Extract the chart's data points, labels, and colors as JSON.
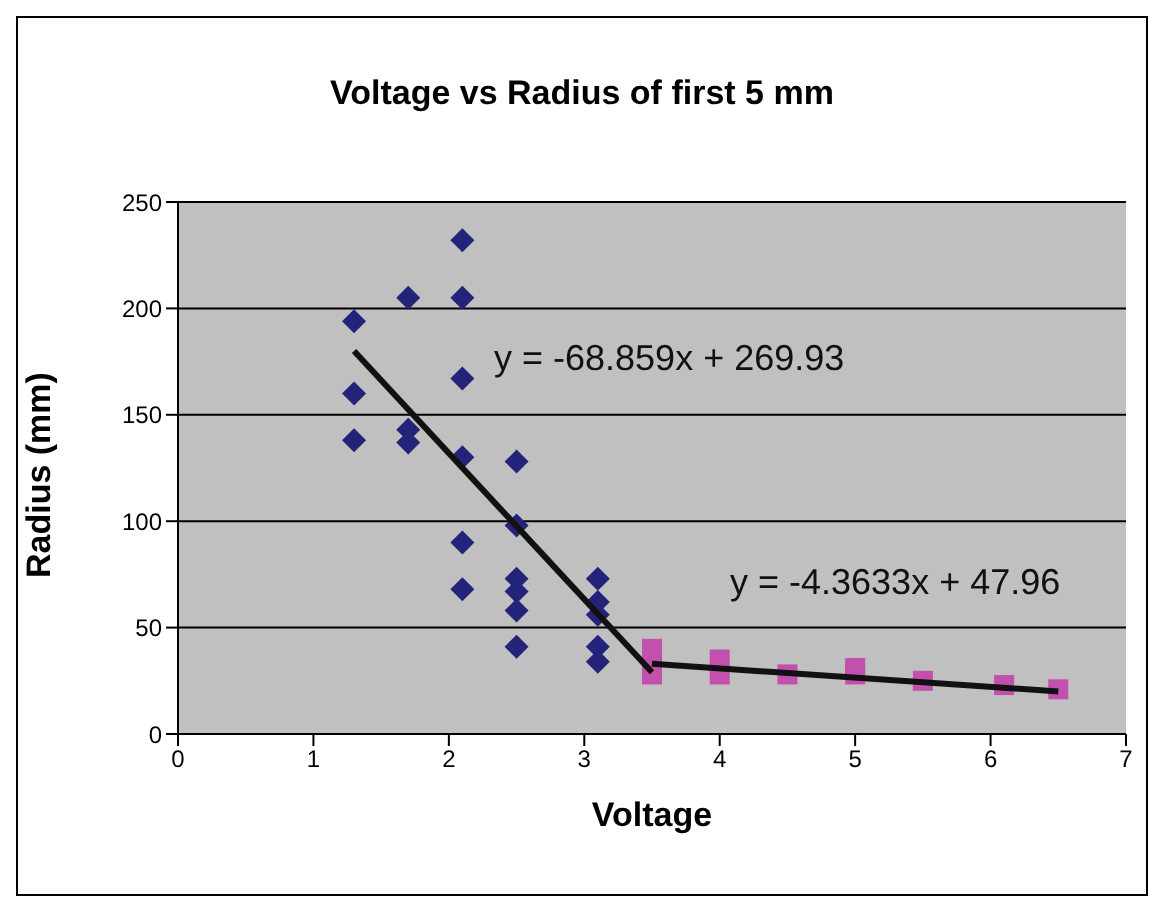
{
  "chart_data": {
    "type": "scatter",
    "title": "Voltage vs Radius of first 5 mm",
    "xlabel": "Voltage",
    "ylabel": "Radius (mm)",
    "xlim": [
      0,
      7
    ],
    "xticks": [
      0,
      1,
      2,
      3,
      4,
      5,
      6,
      7
    ],
    "ylim": [
      0,
      250
    ],
    "yticks": [
      0,
      50,
      100,
      150,
      200,
      250
    ],
    "grid": "y",
    "legend": false,
    "annotations": [
      "y = -68.859x + 269.93",
      "y = -4.3633x + 47.96"
    ],
    "series": [
      {
        "marker": "diamond",
        "color": "#23237a",
        "x": [
          1.3,
          1.3,
          1.3,
          1.7,
          1.7,
          1.7,
          2.1,
          2.1,
          2.1,
          2.1,
          2.1,
          2.1,
          2.5,
          2.5,
          2.5,
          2.5,
          2.5,
          2.5,
          3.1,
          3.1,
          3.1,
          3.1,
          3.1
        ],
        "values": [
          194,
          160,
          138,
          205,
          143,
          137,
          232,
          205,
          167,
          130,
          90,
          68,
          128,
          98,
          73,
          67,
          58,
          41,
          73,
          62,
          56,
          41,
          34
        ]
      },
      {
        "marker": "square",
        "color": "#c450ad",
        "x": [
          3.5,
          3.5,
          3.5,
          4,
          4,
          4.5,
          5,
          5,
          5.5,
          6.1,
          6.5
        ],
        "values": [
          40,
          33,
          28,
          35,
          28,
          28,
          31,
          28,
          25,
          23,
          21
        ]
      },
      {
        "type": "line",
        "marker": "none",
        "color": "#111111",
        "x": [
          1.3,
          3.5
        ],
        "values": [
          180,
          29
        ]
      },
      {
        "type": "line",
        "marker": "none",
        "color": "#111111",
        "x": [
          3.5,
          6.5
        ],
        "values": [
          33,
          20
        ]
      }
    ]
  }
}
